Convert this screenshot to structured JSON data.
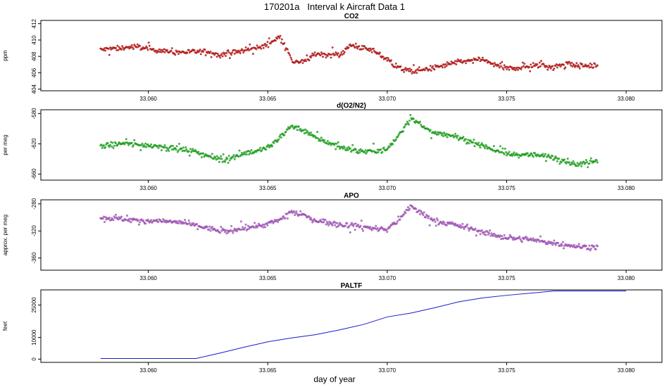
{
  "figure": {
    "title": "170201a   Interval k Aircraft Data 1",
    "xlabel": "day of year"
  },
  "chart_data": [
    {
      "type": "scatter",
      "title": "CO2",
      "ylabel": "ppm",
      "xlabel": "day of year",
      "xlim": [
        33.0555,
        33.0815
      ],
      "ylim": [
        403.8,
        412.4
      ],
      "xticks": [
        "33.060",
        "33.065",
        "33.070",
        "33.075",
        "33.080"
      ],
      "yticks": [
        "404",
        "406",
        "408",
        "410",
        "412"
      ],
      "color": "#ee0000",
      "x_range": [
        33.058,
        33.0788
      ],
      "trend": [
        [
          33.058,
          408.8
        ],
        [
          33.0595,
          409.2
        ],
        [
          33.061,
          408.5
        ],
        [
          33.0625,
          408.6
        ],
        [
          33.063,
          408.2
        ],
        [
          33.064,
          408.7
        ],
        [
          33.0648,
          409.2
        ],
        [
          33.0655,
          410.4
        ],
        [
          33.0658,
          409.0
        ],
        [
          33.066,
          407.4
        ],
        [
          33.0665,
          407.3
        ],
        [
          33.067,
          408.3
        ],
        [
          33.068,
          408.2
        ],
        [
          33.0685,
          409.4
        ],
        [
          33.069,
          409.0
        ],
        [
          33.0695,
          408.6
        ],
        [
          33.07,
          407.6
        ],
        [
          33.0705,
          406.6
        ],
        [
          33.071,
          406.2
        ],
        [
          33.072,
          406.6
        ],
        [
          33.0725,
          407.0
        ],
        [
          33.073,
          407.3
        ],
        [
          33.074,
          407.6
        ],
        [
          33.0745,
          407.0
        ],
        [
          33.075,
          406.5
        ],
        [
          33.076,
          406.8
        ],
        [
          33.0765,
          407.0
        ],
        [
          33.077,
          406.7
        ],
        [
          33.0775,
          407.2
        ],
        [
          33.078,
          406.8
        ],
        [
          33.0788,
          406.9
        ]
      ]
    },
    {
      "type": "scatter",
      "title": "d(O2/N2)",
      "ylabel": "per meg",
      "xlabel": "day of year",
      "xlim": [
        33.0555,
        33.0815
      ],
      "ylim": [
        -668,
        -575
      ],
      "xticks": [
        "33.060",
        "33.065",
        "33.070",
        "33.075",
        "33.080"
      ],
      "yticks": [
        "-580",
        "-620",
        "-660"
      ],
      "color": "#00cc00",
      "x_range": [
        33.058,
        33.0788
      ],
      "trend": [
        [
          33.058,
          -623
        ],
        [
          33.059,
          -620
        ],
        [
          33.0605,
          -623
        ],
        [
          33.0615,
          -628
        ],
        [
          33.062,
          -630
        ],
        [
          33.0625,
          -636
        ],
        [
          33.063,
          -642
        ],
        [
          33.0635,
          -638
        ],
        [
          33.064,
          -632
        ],
        [
          33.0645,
          -630
        ],
        [
          33.065,
          -625
        ],
        [
          33.0655,
          -612
        ],
        [
          33.066,
          -596
        ],
        [
          33.0665,
          -602
        ],
        [
          33.067,
          -612
        ],
        [
          33.068,
          -624
        ],
        [
          33.069,
          -630
        ],
        [
          33.0695,
          -629
        ],
        [
          33.07,
          -628
        ],
        [
          33.0705,
          -608
        ],
        [
          33.071,
          -584
        ],
        [
          33.0715,
          -598
        ],
        [
          33.072,
          -606
        ],
        [
          33.073,
          -612
        ],
        [
          33.074,
          -622
        ],
        [
          33.075,
          -634
        ],
        [
          33.076,
          -634
        ],
        [
          33.077,
          -638
        ],
        [
          33.078,
          -648
        ],
        [
          33.0788,
          -640
        ]
      ]
    },
    {
      "type": "scatter",
      "title": "APO",
      "ylabel": "approx. per meg",
      "xlabel": "day of year",
      "xlim": [
        33.0555,
        33.0815
      ],
      "ylim": [
        -378,
        -274
      ],
      "xticks": [
        "33.060",
        "33.065",
        "33.070",
        "33.075",
        "33.080"
      ],
      "yticks": [
        "-280",
        "-320",
        "-360"
      ],
      "color": "#cc55ee",
      "x_range": [
        33.058,
        33.0788
      ],
      "trend": [
        [
          33.058,
          -300
        ],
        [
          33.059,
          -303
        ],
        [
          33.06,
          -305
        ],
        [
          33.061,
          -306
        ],
        [
          33.0615,
          -308
        ],
        [
          33.062,
          -312
        ],
        [
          33.063,
          -320
        ],
        [
          33.0635,
          -321
        ],
        [
          33.064,
          -316
        ],
        [
          33.065,
          -310
        ],
        [
          33.0655,
          -303
        ],
        [
          33.066,
          -292
        ],
        [
          33.0665,
          -297
        ],
        [
          33.067,
          -304
        ],
        [
          33.068,
          -310
        ],
        [
          33.069,
          -314
        ],
        [
          33.07,
          -318
        ],
        [
          33.0705,
          -303
        ],
        [
          33.071,
          -283
        ],
        [
          33.0715,
          -296
        ],
        [
          33.072,
          -305
        ],
        [
          33.073,
          -312
        ],
        [
          33.074,
          -322
        ],
        [
          33.075,
          -330
        ],
        [
          33.076,
          -333
        ],
        [
          33.077,
          -338
        ],
        [
          33.078,
          -343
        ],
        [
          33.0788,
          -344
        ]
      ]
    },
    {
      "type": "line",
      "title": "PALTF",
      "ylabel": "feet",
      "xlabel": "day of year",
      "xlim": [
        33.0555,
        33.0815
      ],
      "ylim": [
        -1500,
        32000
      ],
      "xticks": [
        "33.060",
        "33.065",
        "33.070",
        "33.075",
        "33.080"
      ],
      "yticks": [
        "0",
        "10000",
        "25000"
      ],
      "color": "#1a1acc",
      "x": [
        33.058,
        33.06,
        33.062,
        33.063,
        33.064,
        33.065,
        33.066,
        33.067,
        33.068,
        33.069,
        33.07,
        33.071,
        33.072,
        33.073,
        33.074,
        33.075,
        33.076,
        33.077,
        33.0775,
        33.078,
        33.079,
        33.08
      ],
      "y": [
        300,
        300,
        300,
        2800,
        5500,
        8000,
        9800,
        11300,
        13500,
        16000,
        19500,
        21300,
        23800,
        26500,
        28300,
        29500,
        30500,
        31500,
        31500,
        31500,
        31500,
        31500
      ]
    }
  ]
}
